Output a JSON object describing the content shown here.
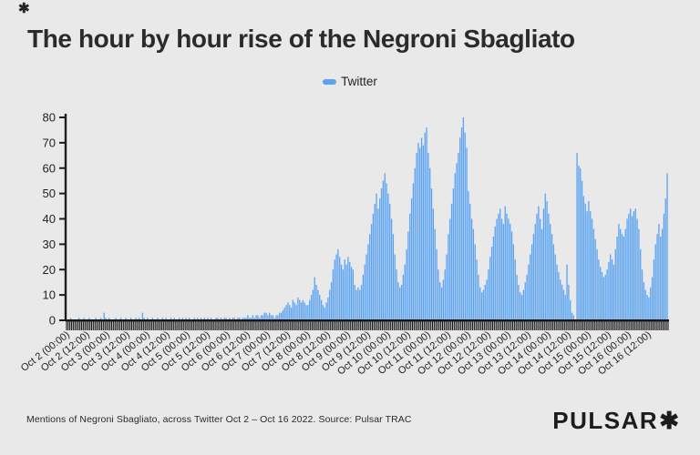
{
  "page": {
    "background": "#e9e9e9"
  },
  "brand": {
    "corner_mark": "✱",
    "logo_text": "PULSAR",
    "logo_mark": "✱"
  },
  "title": "The hour by hour rise of the Negroni Sbagliato",
  "legend": {
    "label": "Twitter",
    "swatch_color": "#5aa3f2"
  },
  "footer": {
    "caption": "Mentions of Negroni Sbagliato, across Twitter Oct 2 – Oct 16 2022. Source: Pulsar TRAC"
  },
  "chart_data": {
    "type": "bar",
    "title": "The hour by hour rise of the Negroni Sbagliato",
    "series_name": "Twitter",
    "bar_color": "#5aa3f2",
    "axis_color": "#1d1d1d",
    "tick_label_color": "#222222",
    "ylabel": "",
    "xlabel": "",
    "ylim": [
      0,
      80
    ],
    "yticks": [
      0,
      10,
      20,
      30,
      40,
      50,
      60,
      70,
      80
    ],
    "grid": "off",
    "legend_position": "top-center",
    "x_start": "Oct 2 2022 00:00",
    "x_interval": "1 hour",
    "xtick_every_hours": 12,
    "xtick_labels": [
      "Oct 2 (00:00)",
      "Oct 2 (12:00)",
      "Oct 3 (00:00)",
      "Oct 3 (12:00)",
      "Oct 4 (00:00)",
      "Oct 4 (12:00)",
      "Oct 5 (00:00)",
      "Oct 5 (12:00)",
      "Oct 6 (00:00)",
      "Oct 6 (12:00)",
      "Oct 7 (00:00)",
      "Oct 7 (12:00)",
      "Oct 8 (00:00)",
      "Oct 8 (12:00)",
      "Oct 9 (00:00)",
      "Oct 9 (12:00)",
      "Oct 10 (00:00)",
      "Oct 10 (12:00)",
      "Oct 11 (00:00)",
      "Oct 11 (12:00)",
      "Oct 12 (00:00)",
      "Oct 12 (12:00)",
      "Oct 13 (00:00)",
      "Oct 13 (12:00)",
      "Oct 14 (00:00)",
      "Oct 14 (12:00)",
      "Oct 15 (00:00)",
      "Oct 15 (12:00)",
      "Oct 16 (00:00)",
      "Oct 16 (12:00)"
    ],
    "values": [
      0,
      0,
      1,
      0,
      0,
      0,
      0,
      1,
      0,
      0,
      1,
      0,
      0,
      1,
      0,
      0,
      0,
      1,
      0,
      0,
      1,
      0,
      3,
      1,
      0,
      1,
      0,
      0,
      0,
      1,
      0,
      0,
      1,
      0,
      0,
      1,
      0,
      0,
      1,
      0,
      0,
      1,
      0,
      1,
      0,
      3,
      1,
      0,
      1,
      0,
      0,
      1,
      0,
      0,
      1,
      0,
      0,
      1,
      0,
      1,
      0,
      0,
      1,
      0,
      1,
      0,
      0,
      1,
      0,
      1,
      0,
      1,
      0,
      1,
      0,
      0,
      1,
      0,
      1,
      0,
      1,
      0,
      1,
      0,
      1,
      0,
      1,
      0,
      0,
      1,
      1,
      0,
      1,
      0,
      1,
      1,
      0,
      1,
      0,
      1,
      1,
      0,
      1,
      1,
      0,
      1,
      1,
      1,
      2,
      1,
      1,
      2,
      1,
      2,
      2,
      1,
      2,
      2,
      3,
      3,
      2,
      3,
      2,
      2,
      1,
      2,
      2,
      3,
      3,
      4,
      5,
      6,
      7,
      6,
      5,
      8,
      7,
      6,
      9,
      8,
      7,
      8,
      7,
      6,
      6,
      8,
      10,
      12,
      17,
      14,
      12,
      10,
      8,
      6,
      5,
      7,
      9,
      12,
      15,
      20,
      24,
      26,
      28,
      25,
      22,
      20,
      24,
      22,
      25,
      23,
      21,
      20,
      14,
      12,
      13,
      12,
      14,
      18,
      22,
      26,
      30,
      34,
      38,
      42,
      46,
      50,
      44,
      48,
      52,
      55,
      58,
      54,
      50,
      46,
      40,
      34,
      26,
      20,
      15,
      13,
      14,
      18,
      22,
      28,
      35,
      42,
      48,
      54,
      60,
      66,
      70,
      68,
      72,
      69,
      74,
      76,
      66,
      60,
      52,
      44,
      36,
      28,
      20,
      15,
      13,
      16,
      20,
      26,
      34,
      40,
      46,
      52,
      58,
      62,
      66,
      72,
      76,
      80,
      74,
      68,
      51,
      46,
      40,
      36,
      30,
      24,
      18,
      13,
      11,
      12,
      14,
      16,
      20,
      25,
      29,
      33,
      37,
      40,
      42,
      44,
      40,
      38,
      45,
      42,
      40,
      38,
      35,
      30,
      24,
      18,
      14,
      11,
      10,
      12,
      15,
      18,
      22,
      26,
      30,
      34,
      38,
      42,
      45,
      40,
      36,
      44,
      50,
      47,
      42,
      38,
      34,
      30,
      26,
      22,
      19,
      16,
      14,
      12,
      10,
      22,
      14,
      8,
      3,
      2,
      0,
      66,
      61,
      60,
      55,
      49,
      46,
      43,
      47,
      43,
      40,
      36,
      32,
      28,
      24,
      21,
      19,
      17,
      18,
      20,
      23,
      26,
      24,
      22,
      28,
      33,
      38,
      36,
      34,
      33,
      36,
      40,
      42,
      44,
      41,
      43,
      44,
      40,
      36,
      28,
      20,
      15,
      12,
      10,
      9,
      13,
      17,
      24,
      30,
      34,
      38,
      33,
      36,
      42,
      48,
      58
    ]
  }
}
